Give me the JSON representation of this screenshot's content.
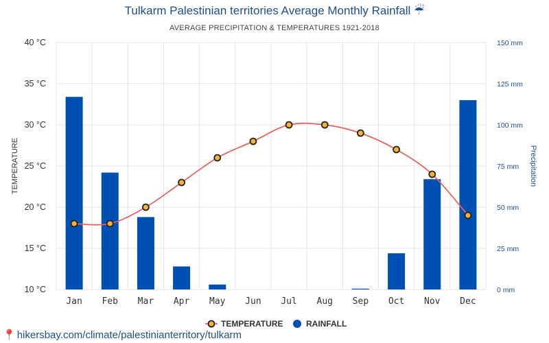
{
  "header": {
    "title": "Tulkarm Palestinian territories Average Monthly Rainfall",
    "title_icon": "umbrella-icon",
    "title_icon_glyph": "☔",
    "subtitle": "AVERAGE PRECIPITATION & TEMPERATURES 1921-2018"
  },
  "footer": {
    "link_text": "hikersbay.com/climate/palestinianterritory/tulkarm",
    "icon": "map-pin-icon",
    "icon_glyph": "📍"
  },
  "colors": {
    "bar": "#0050b4",
    "line": "#e8625e",
    "marker_fill": "#f5b335",
    "marker_stroke": "#222222",
    "left_axis_text": "#333333",
    "right_axis_text": "#1f4e8c",
    "grid": "#e6e6e6"
  },
  "chart_data": {
    "type": "bar",
    "categories": [
      "Jan",
      "Feb",
      "Mar",
      "Apr",
      "May",
      "Jun",
      "Jul",
      "Aug",
      "Sep",
      "Oct",
      "Nov",
      "Dec"
    ],
    "series": [
      {
        "name": "RAINFALL",
        "type": "bar",
        "axis": "right",
        "values": [
          117,
          71,
          44,
          14,
          3,
          0,
          0,
          0,
          0.5,
          22,
          67,
          115
        ]
      },
      {
        "name": "TEMPERATURE",
        "type": "line",
        "axis": "left",
        "values": [
          18,
          18,
          20,
          23,
          26,
          28,
          30,
          30,
          29,
          27,
          24,
          19
        ]
      }
    ],
    "ylabel": "TEMPERATURE",
    "y2label": "Precipitation",
    "ylim": [
      10,
      40
    ],
    "y2lim": [
      0,
      150
    ],
    "yticks": [
      {
        "value": 10,
        "label": "10 °C"
      },
      {
        "value": 15,
        "label": "15 °C"
      },
      {
        "value": 20,
        "label": "20 °C"
      },
      {
        "value": 25,
        "label": "25 °C"
      },
      {
        "value": 30,
        "label": "30 °C"
      },
      {
        "value": 35,
        "label": "35 °C"
      },
      {
        "value": 40,
        "label": "40 °C"
      }
    ],
    "y2ticks": [
      {
        "value": 0,
        "label": "0 mm"
      },
      {
        "value": 25,
        "label": "25 mm"
      },
      {
        "value": 50,
        "label": "50 mm"
      },
      {
        "value": 75,
        "label": "75 mm"
      },
      {
        "value": 100,
        "label": "100 mm"
      },
      {
        "value": 125,
        "label": "125 mm"
      },
      {
        "value": 150,
        "label": "150 mm"
      }
    ],
    "grid": true,
    "legend": {
      "position": "bottom-center",
      "items": [
        {
          "label": "TEMPERATURE",
          "kind": "line-marker"
        },
        {
          "label": "RAINFALL",
          "kind": "dot"
        }
      ]
    }
  }
}
